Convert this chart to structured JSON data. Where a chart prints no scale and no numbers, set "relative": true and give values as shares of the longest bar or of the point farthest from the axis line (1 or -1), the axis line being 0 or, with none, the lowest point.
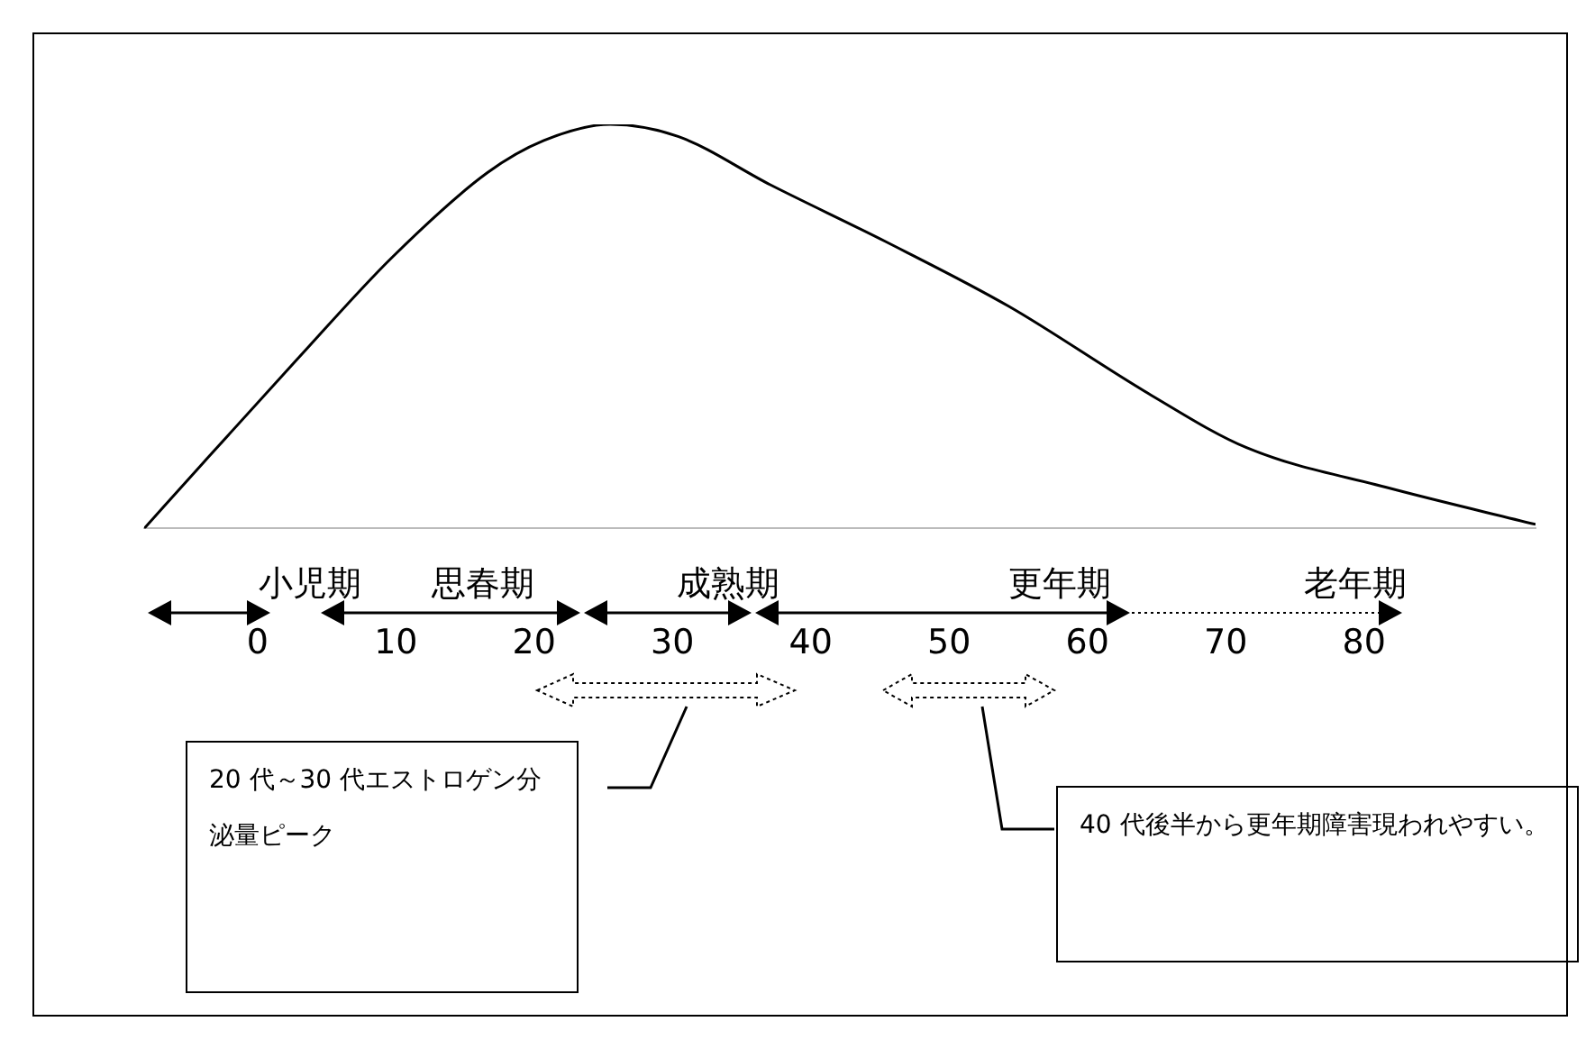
{
  "chart_data": {
    "type": "line",
    "relative": true,
    "tick_labels": "x",
    "grid": false,
    "legend": false,
    "marker": "none",
    "line_style": "solid",
    "xlim": [
      -8.2,
      92.4
    ],
    "xticks": [
      0,
      10,
      20,
      30,
      40,
      50,
      60,
      70,
      80
    ],
    "series": [
      {
        "color": "#000000",
        "x": [
          -8.2,
          -4.0,
          2.9,
          9.7,
          16.6,
          20.7,
          25.5,
          30.4,
          37.1,
          45.4,
          54.3,
          64.6,
          71.5,
          81.8,
          92.4
        ],
        "values": [
          0,
          0.16,
          0.42,
          0.67,
          0.88,
          0.96,
          1,
          0.97,
          0.85,
          0.71,
          0.55,
          0.33,
          0.2,
          0.1,
          0.01
        ]
      }
    ],
    "annotations": [
      "小児期",
      "思春期",
      "成熟期",
      "更年期",
      "老年期",
      "20 代～30 代エストロゲン分泌量ピーク",
      "40 代後半から更年期障害現われやすい。"
    ]
  }
}
